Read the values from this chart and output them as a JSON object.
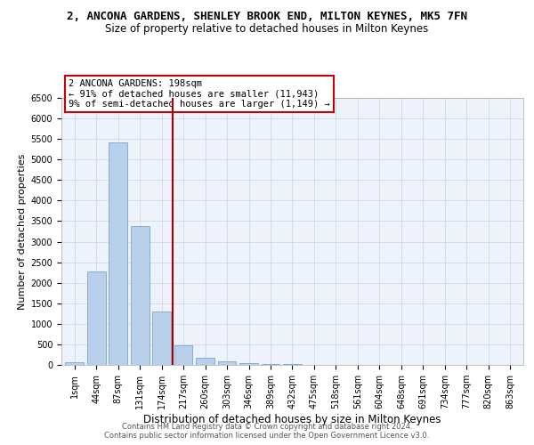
{
  "title_line1": "2, ANCONA GARDENS, SHENLEY BROOK END, MILTON KEYNES, MK5 7FN",
  "title_line2": "Size of property relative to detached houses in Milton Keynes",
  "xlabel": "Distribution of detached houses by size in Milton Keynes",
  "ylabel": "Number of detached properties",
  "footer_line1": "Contains HM Land Registry data © Crown copyright and database right 2024.",
  "footer_line2": "Contains public sector information licensed under the Open Government Licence v3.0.",
  "annotation_line1": "2 ANCONA GARDENS: 198sqm",
  "annotation_line2": "← 91% of detached houses are smaller (11,943)",
  "annotation_line3": "9% of semi-detached houses are larger (1,149) →",
  "bar_labels": [
    "1sqm",
    "44sqm",
    "87sqm",
    "131sqm",
    "174sqm",
    "217sqm",
    "260sqm",
    "303sqm",
    "346sqm",
    "389sqm",
    "432sqm",
    "475sqm",
    "518sqm",
    "561sqm",
    "604sqm",
    "648sqm",
    "691sqm",
    "734sqm",
    "777sqm",
    "820sqm",
    "863sqm"
  ],
  "bar_values": [
    70,
    2280,
    5420,
    3380,
    1310,
    470,
    165,
    80,
    50,
    25,
    15,
    8,
    5,
    3,
    2,
    1,
    1,
    0,
    0,
    0,
    0
  ],
  "bar_color": "#b8d0ea",
  "bar_edge_color": "#6699cc",
  "vline_x": 4.5,
  "vline_color": "#aa0000",
  "ylim_max": 6500,
  "ytick_step": 500,
  "grid_color": "#c8d4e8",
  "bg_color": "#edf2fb",
  "annotation_box_edgecolor": "#cc0000",
  "title1_fontsize": 9,
  "title2_fontsize": 8.5,
  "xlabel_fontsize": 8.5,
  "ylabel_fontsize": 8,
  "tick_fontsize": 7,
  "footer_fontsize": 6,
  "ann_fontsize": 7.5
}
